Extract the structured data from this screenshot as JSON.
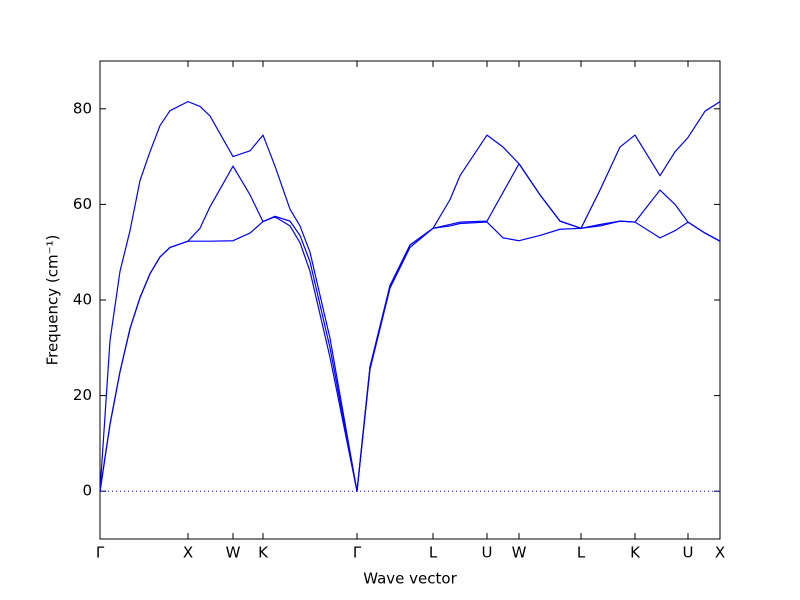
{
  "chart_data": {
    "type": "line",
    "xlabel": "Wave vector",
    "ylabel": "Frequency (cm⁻¹)",
    "x": [
      0,
      10,
      20,
      30,
      40,
      50,
      60,
      70,
      88,
      100,
      110,
      133,
      150,
      163,
      175,
      190,
      200,
      210,
      230,
      257,
      270,
      290,
      310,
      333,
      350,
      360,
      387,
      403,
      419,
      440,
      460,
      481,
      500,
      520,
      535,
      560,
      575,
      588,
      605,
      620
    ],
    "series": [
      {
        "color": "#0000ff",
        "values": [
          0,
          31.5,
          46,
          54.5,
          65,
          71,
          76.5,
          79.6,
          81.5,
          80.5,
          78.5,
          70,
          71.2,
          74.5,
          68,
          59,
          55.5,
          50,
          32,
          0,
          26,
          43,
          51.5,
          55,
          61,
          66,
          74.5,
          72,
          68.5,
          62,
          56.5,
          55,
          63,
          72,
          74.5,
          66,
          71,
          74,
          79.5,
          81.5
        ]
      },
      {
        "color": "#0000ff",
        "values": [
          0,
          14,
          25,
          34,
          40.5,
          45.5,
          49,
          51,
          52.3,
          55,
          59.5,
          68,
          62,
          56.4,
          57.5,
          56.5,
          53.5,
          48,
          30,
          0,
          26,
          43,
          51.5,
          55,
          55.8,
          56.3,
          56.5,
          62.5,
          68.5,
          62,
          56.5,
          55,
          55.8,
          56.5,
          56.3,
          63,
          60,
          56.3,
          54,
          52.3
        ]
      },
      {
        "color": "#0000ff",
        "values": [
          0,
          14,
          25,
          34,
          40.5,
          45.5,
          49,
          51,
          52.3,
          52.3,
          52.3,
          52.4,
          54,
          56.4,
          57.4,
          55.5,
          52,
          46,
          28,
          0,
          25.5,
          42.5,
          51,
          55,
          55.5,
          56,
          56.3,
          53,
          52.4,
          53.5,
          54.8,
          55,
          55.5,
          56.5,
          56.3,
          53,
          54.5,
          56.3,
          54,
          52.3
        ]
      }
    ],
    "hlines": [
      0
    ],
    "xlim": [
      0,
      620
    ],
    "xticks": [
      {
        "value": 0,
        "label": "Γ"
      },
      {
        "value": 88,
        "label": "X"
      },
      {
        "value": 133,
        "label": "W"
      },
      {
        "value": 163,
        "label": "K"
      },
      {
        "value": 257,
        "label": "Γ"
      },
      {
        "value": 333,
        "label": "L"
      },
      {
        "value": 387,
        "label": "U"
      },
      {
        "value": 419,
        "label": "W"
      },
      {
        "value": 481,
        "label": "L"
      },
      {
        "value": 535,
        "label": "K"
      },
      {
        "value": 588,
        "label": "U"
      },
      {
        "value": 620,
        "label": "X"
      }
    ],
    "ylim": [
      -10,
      90
    ],
    "yticks": [
      0,
      20,
      40,
      60,
      80
    ]
  }
}
